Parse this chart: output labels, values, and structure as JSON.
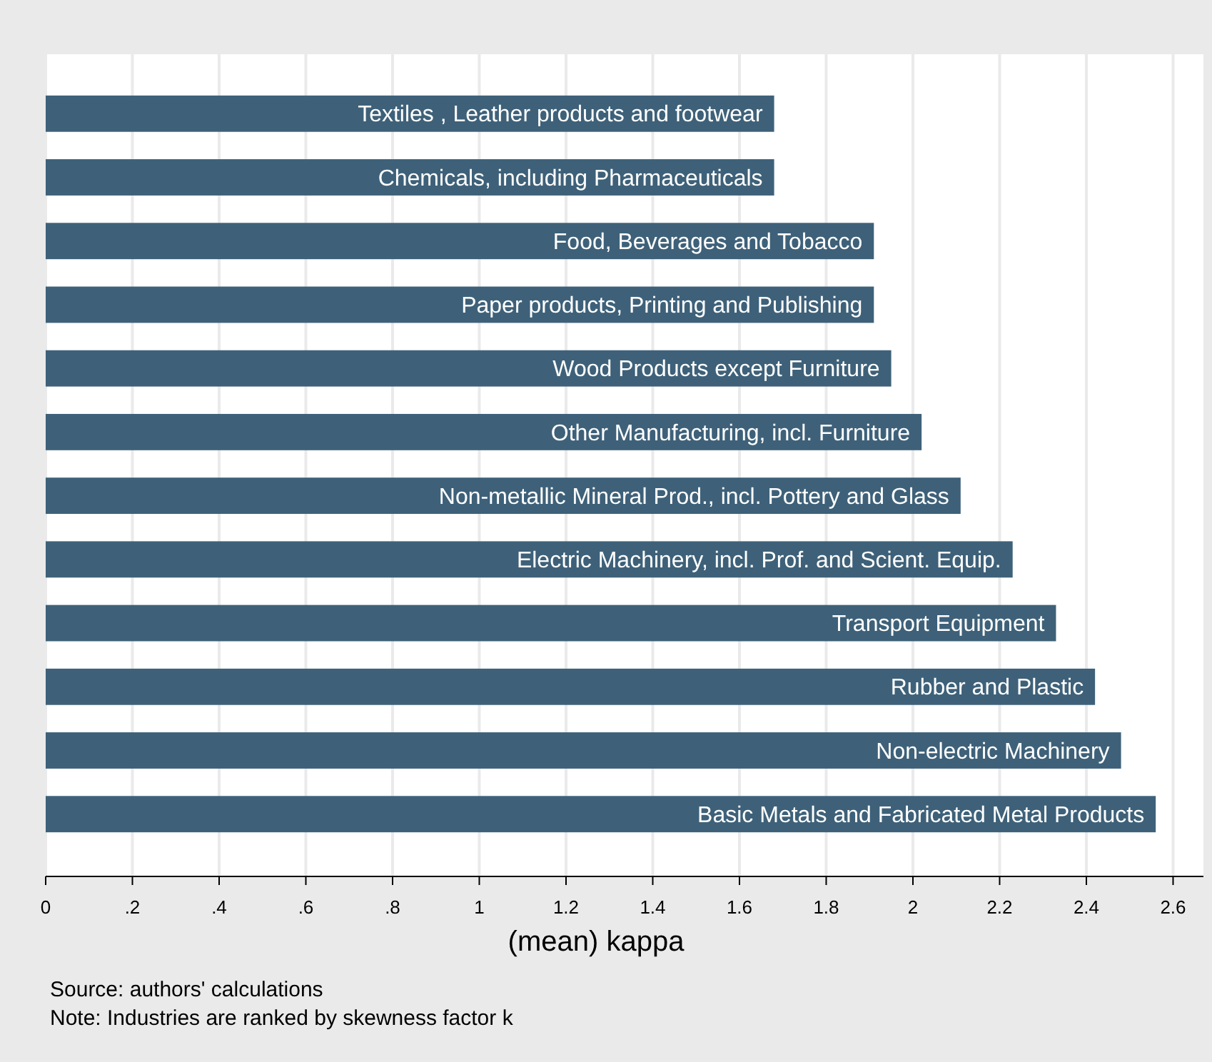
{
  "chart_data": {
    "type": "bar",
    "orientation": "horizontal",
    "xlabel": "(mean) kappa",
    "categories": [
      "Textiles , Leather products and footwear",
      "Chemicals, including Pharmaceuticals",
      "Food, Beverages and Tobacco",
      "Paper products, Printing and Publishing",
      "Wood Products except Furniture",
      "Other Manufacturing, incl. Furniture",
      "Non-metallic Mineral Prod., incl. Pottery and Glass",
      "Electric Machinery, incl. Prof. and Scient. Equip.",
      "Transport Equipment",
      "Rubber and Plastic",
      "Non-electric Machinery",
      "Basic Metals and Fabricated Metal Products"
    ],
    "values": [
      1.68,
      1.68,
      1.91,
      1.91,
      1.95,
      2.02,
      2.11,
      2.23,
      2.33,
      2.42,
      2.48,
      2.56
    ],
    "color": "#3e6179",
    "xlim": [
      0,
      2.67
    ],
    "xticks": [
      0,
      {
        "value": 0.2,
        "label": ".2"
      },
      {
        "value": 0.4,
        "label": ".4"
      },
      {
        "value": 0.6,
        "label": ".6"
      },
      {
        "value": 0.8,
        "label": ".8"
      },
      1,
      1.2,
      1.4,
      1.6,
      1.8,
      2,
      2.2,
      2.4,
      2.6
    ],
    "grid": "x",
    "tick_labels": "x",
    "annotations": [
      "Source: authors' calculations",
      "Note: Industries are ranked by skewness factor k"
    ]
  }
}
